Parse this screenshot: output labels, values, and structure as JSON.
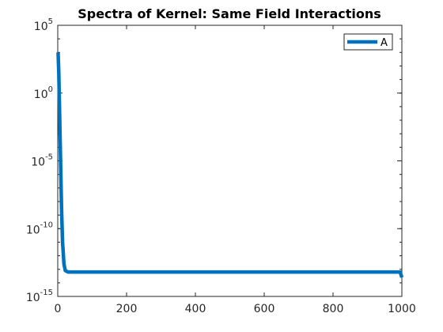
{
  "chart_data": {
    "type": "line",
    "title": "Spectra of Kernel: Same Field Interactions",
    "xlabel": "",
    "ylabel": "",
    "xlim": [
      0,
      1000
    ],
    "ylim_exponents": [
      -15,
      5
    ],
    "yscale": "log",
    "x_ticks": [
      {
        "value": 0,
        "label": "0"
      },
      {
        "value": 200,
        "label": "200"
      },
      {
        "value": 400,
        "label": "400"
      },
      {
        "value": 600,
        "label": "600"
      },
      {
        "value": 800,
        "label": "800"
      },
      {
        "value": 1000,
        "label": "1000"
      }
    ],
    "y_ticks": [
      {
        "exp": 5,
        "base": "10",
        "sup": "5"
      },
      {
        "exp": 0,
        "base": "10",
        "sup": "0"
      },
      {
        "exp": -5,
        "base": "10",
        "sup": "-5"
      },
      {
        "exp": -10,
        "base": "10",
        "sup": "-10"
      },
      {
        "exp": -15,
        "base": "10",
        "sup": "-15"
      }
    ],
    "grid": false,
    "legend_position": "top-right",
    "series": [
      {
        "name": "A",
        "color": "#0072BD",
        "points": [
          {
            "x": 1,
            "log10y": 3.0
          },
          {
            "x": 3,
            "log10y": 1.5
          },
          {
            "x": 5,
            "log10y": -1.0
          },
          {
            "x": 7,
            "log10y": -3.5
          },
          {
            "x": 9,
            "log10y": -6.0
          },
          {
            "x": 11,
            "log10y": -8.5
          },
          {
            "x": 14,
            "log10y": -11.0
          },
          {
            "x": 18,
            "log10y": -12.6
          },
          {
            "x": 22,
            "log10y": -13.1
          },
          {
            "x": 30,
            "log10y": -13.2
          },
          {
            "x": 100,
            "log10y": -13.2
          },
          {
            "x": 300,
            "log10y": -13.2
          },
          {
            "x": 500,
            "log10y": -13.2
          },
          {
            "x": 700,
            "log10y": -13.2
          },
          {
            "x": 900,
            "log10y": -13.2
          },
          {
            "x": 995,
            "log10y": -13.2
          },
          {
            "x": 1000,
            "log10y": -13.6
          }
        ]
      }
    ]
  }
}
